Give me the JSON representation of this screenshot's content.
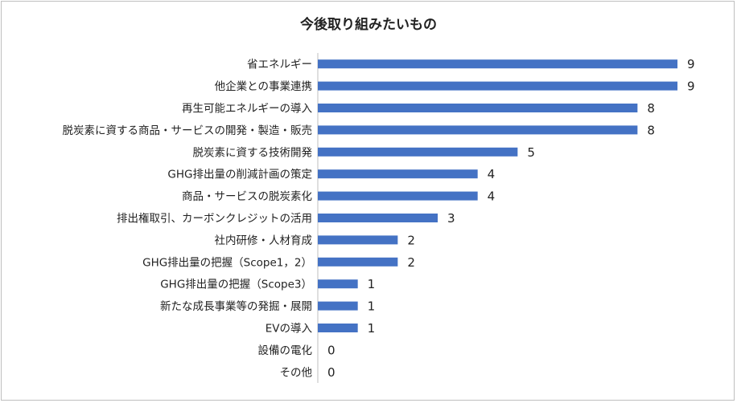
{
  "chart_data": {
    "type": "bar",
    "orientation": "horizontal",
    "title": "今後取り組みたいもの",
    "categories": [
      "省エネルギー",
      "他企業との事業連携",
      "再生可能エネルギーの導入",
      "脱炭素に資する商品・サービスの開発・製造・販売",
      "脱炭素に資する技術開発",
      "GHG排出量の削減計画の策定",
      "商品・サービスの脱炭素化",
      "排出権取引、カーボンクレジットの活用",
      "社内研修・人材育成",
      "GHG排出量の把握（Scope1，2）",
      "GHG排出量の把握（Scope3）",
      "新たな成長事業等の発掘・展開",
      "EVの導入",
      "設備の電化",
      "その他"
    ],
    "values": [
      9,
      9,
      8,
      8,
      5,
      4,
      4,
      3,
      2,
      2,
      1,
      1,
      1,
      0,
      0
    ],
    "xlim": [
      0,
      9
    ],
    "grid": false,
    "legend": "none",
    "bar_color": "#4472c4"
  }
}
